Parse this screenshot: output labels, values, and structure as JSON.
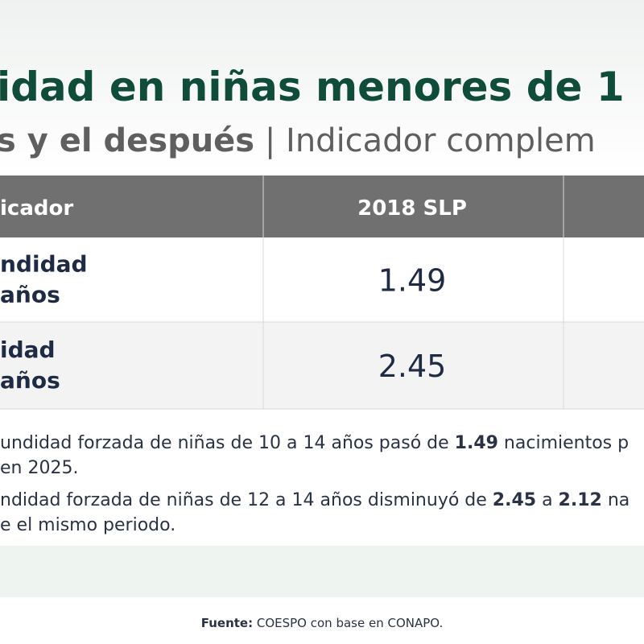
{
  "header": {
    "title_line1": [
      {
        "text": "idad en niñas menores de 1",
        "bold": true
      }
    ],
    "title_line2": [
      {
        "text": "s y el después",
        "bold": true
      },
      {
        "text": " | Indicador complem",
        "bold": false
      }
    ]
  },
  "table": {
    "columns": [
      "icador",
      "2018 SLP"
    ],
    "rows": [
      {
        "label": [
          "ndidad",
          "años"
        ],
        "value": "1.49"
      },
      {
        "label": [
          "idad",
          "años"
        ],
        "value": "2.45"
      }
    ]
  },
  "notes": [
    {
      "lines": [
        [
          {
            "text": "undidad forzada de niñas de 10 a 14 años pasó de ",
            "bold": false
          },
          {
            "text": "1.49",
            "bold": true
          },
          {
            "text": " nacimientos p",
            "bold": false
          }
        ],
        [
          {
            "text": "en 2025.",
            "bold": false
          }
        ]
      ]
    },
    {
      "lines": [
        [
          {
            "text": "ndidad forzada de niñas de 12 a 14 años disminuyó de ",
            "bold": false
          },
          {
            "text": "2.45",
            "bold": true
          },
          {
            "text": " a ",
            "bold": false
          },
          {
            "text": "2.12",
            "bold": true
          },
          {
            "text": " na",
            "bold": false
          }
        ],
        [
          {
            "text": "e el mismo periodo.",
            "bold": false
          }
        ]
      ]
    }
  ],
  "footer": [
    {
      "text": "Fuente:",
      "bold": true
    },
    {
      "text": " COESPO con base en CONAPO.",
      "bold": false
    }
  ]
}
